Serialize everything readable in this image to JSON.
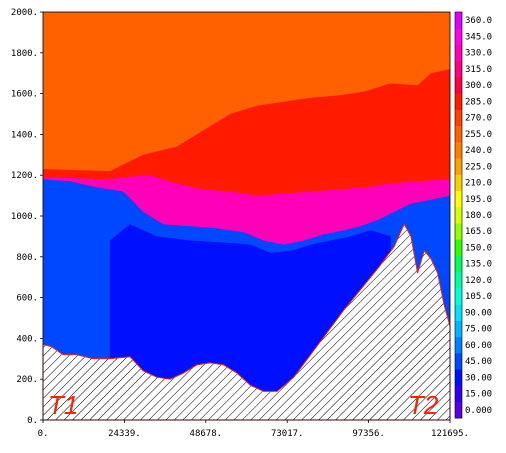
{
  "chart_data": {
    "type": "heatmap",
    "subtype": "filled-contour cross-section",
    "title": "",
    "xlabel": "",
    "ylabel": "",
    "xlim": [
      0,
      121695
    ],
    "ylim": [
      0,
      2000
    ],
    "x_ticks": [
      {
        "value": 0,
        "label": "0."
      },
      {
        "value": 24339,
        "label": "24339."
      },
      {
        "value": 48678,
        "label": "48678."
      },
      {
        "value": 73017,
        "label": "73017."
      },
      {
        "value": 97356,
        "label": "97356."
      },
      {
        "value": 121695,
        "label": "121695."
      }
    ],
    "y_ticks": [
      {
        "value": 0,
        "label": "0."
      },
      {
        "value": 200,
        "label": "200."
      },
      {
        "value": 400,
        "label": "400."
      },
      {
        "value": 600,
        "label": "600."
      },
      {
        "value": 800,
        "label": "800."
      },
      {
        "value": 1000,
        "label": "1000."
      },
      {
        "value": 1200,
        "label": "1200."
      },
      {
        "value": 1400,
        "label": "1400."
      },
      {
        "value": 1600,
        "label": "1600."
      },
      {
        "value": 1800,
        "label": "1800."
      },
      {
        "value": 2000,
        "label": "2000."
      }
    ],
    "endpoints": {
      "left": "T1",
      "right": "T2"
    },
    "colorbar": {
      "range": [
        0,
        360
      ],
      "step": 15,
      "labels": [
        "0.000",
        "15.00",
        "30.00",
        "45.00",
        "60.00",
        "75.00",
        "90.00",
        "105.0",
        "120.0",
        "135.0",
        "150.0",
        "165.0",
        "180.0",
        "195.0",
        "210.0",
        "225.0",
        "240.0",
        "255.0",
        "270.0",
        "285.0",
        "300.0",
        "315.0",
        "330.0",
        "345.0",
        "360.0"
      ],
      "colors": [
        "#5a00e6",
        "#3000f0",
        "#0010ff",
        "#0048ff",
        "#0080ff",
        "#00b4ff",
        "#00e0ff",
        "#00ffe0",
        "#00ffa0",
        "#00ff58",
        "#30ff00",
        "#90ff00",
        "#d8ff00",
        "#ffff00",
        "#ffd000",
        "#ffa000",
        "#ff8000",
        "#ff6000",
        "#ff4000",
        "#ff1a00",
        "#ff0040",
        "#ff0080",
        "#ff00b8",
        "#ff00e8",
        "#e000ff"
      ]
    },
    "terrain_profile": {
      "x": [
        0,
        2500,
        6000,
        10000,
        15000,
        20000,
        26000,
        30000,
        34000,
        38000,
        42000,
        46000,
        50000,
        54000,
        58000,
        62000,
        66000,
        70000,
        75000,
        80000,
        85000,
        90000,
        95000,
        100000,
        105000,
        108000,
        110000,
        112000,
        114000,
        116000,
        118000,
        120000,
        121695
      ],
      "height": [
        370,
        360,
        320,
        320,
        300,
        300,
        310,
        240,
        210,
        200,
        230,
        270,
        280,
        270,
        230,
        170,
        140,
        140,
        210,
        320,
        430,
        540,
        640,
        740,
        850,
        960,
        900,
        720,
        830,
        790,
        720,
        560,
        460
      ]
    },
    "regions": [
      {
        "label": "lower blue layer",
        "color": "#0048ff",
        "top_x": [
          0,
          8000,
          16000,
          24000,
          30000,
          36000,
          44000,
          52000,
          60000,
          66000,
          72000,
          78000,
          84000,
          90000,
          95000,
          100000,
          105000,
          110000,
          116000,
          121695
        ],
        "top": [
          1180,
          1170,
          1140,
          1120,
          1020,
          960,
          950,
          940,
          920,
          880,
          860,
          880,
          910,
          930,
          950,
          980,
          1020,
          1060,
          1080,
          1100
        ]
      },
      {
        "label": "deep blue core",
        "color": "#0010ff",
        "top_x": [
          20000,
          26000,
          34000,
          44000,
          54000,
          62000,
          68000,
          74000,
          80000,
          86000,
          92000,
          98000,
          104000
        ],
        "top": [
          880,
          960,
          900,
          880,
          870,
          860,
          820,
          830,
          860,
          880,
          900,
          930,
          900
        ]
      },
      {
        "label": "magenta transition layer",
        "color": "#ff00b8",
        "top_x": [
          0,
          20000,
          24000,
          32000,
          40000,
          48000,
          56000,
          64000,
          72000,
          80000,
          88000,
          96000,
          104000,
          112000,
          121695
        ],
        "top": [
          1190,
          1180,
          1190,
          1200,
          1160,
          1130,
          1120,
          1100,
          1110,
          1120,
          1130,
          1140,
          1160,
          1170,
          1180
        ]
      },
      {
        "label": "red layer",
        "color": "#ff1a00",
        "top_x": [
          0,
          20000,
          30000,
          40000,
          48000,
          56000,
          64000,
          72000,
          80000,
          88000,
          96000,
          104000,
          112000,
          116000,
          121695
        ],
        "top": [
          1230,
          1220,
          1300,
          1340,
          1420,
          1500,
          1540,
          1560,
          1580,
          1590,
          1610,
          1650,
          1640,
          1700,
          1720
        ]
      },
      {
        "label": "upper orange layer",
        "color": "#ff6000",
        "top_x": [
          0,
          121695
        ],
        "top": [
          2000,
          2000
        ]
      }
    ]
  }
}
